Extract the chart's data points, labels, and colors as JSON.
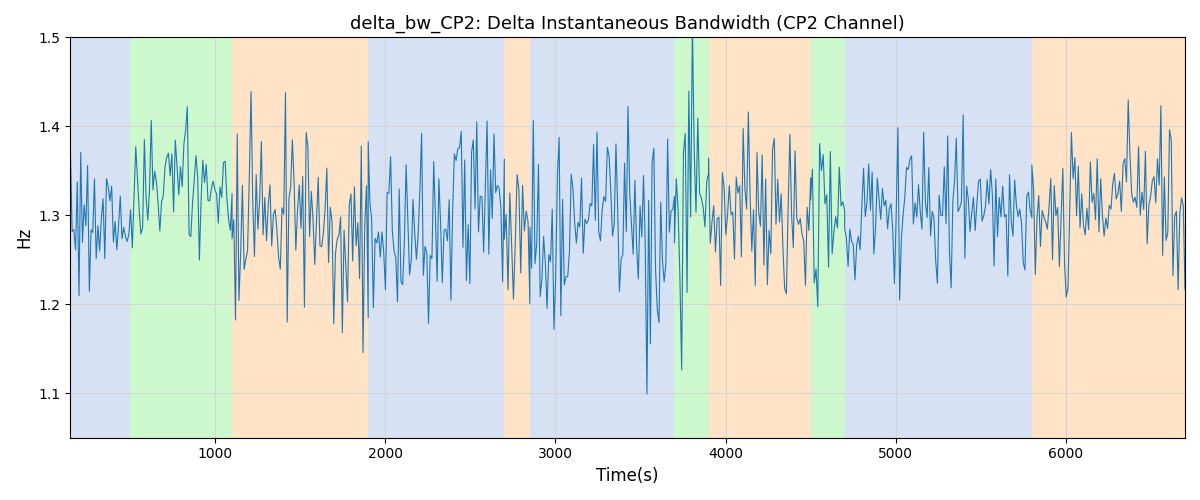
{
  "title": "delta_bw_CP2: Delta Instantaneous Bandwidth (CP2 Channel)",
  "xlabel": "Time(s)",
  "ylabel": "Hz",
  "ylim": [
    1.05,
    1.5
  ],
  "xlim": [
    150,
    6700
  ],
  "yticks": [
    1.1,
    1.2,
    1.3,
    1.4,
    1.5
  ],
  "line_color": "#1f77b4",
  "line_width": 0.8,
  "bg_regions": [
    {
      "xstart": 150,
      "xend": 500,
      "color": "#aec6e8",
      "alpha": 0.5
    },
    {
      "xstart": 500,
      "xend": 1100,
      "color": "#90ee90",
      "alpha": 0.45
    },
    {
      "xstart": 1100,
      "xend": 1900,
      "color": "#ffcc99",
      "alpha": 0.55
    },
    {
      "xstart": 1900,
      "xend": 2700,
      "color": "#aec6e8",
      "alpha": 0.5
    },
    {
      "xstart": 2700,
      "xend": 2850,
      "color": "#ffcc99",
      "alpha": 0.55
    },
    {
      "xstart": 2850,
      "xend": 3700,
      "color": "#aec6e8",
      "alpha": 0.5
    },
    {
      "xstart": 3700,
      "xend": 3900,
      "color": "#90ee90",
      "alpha": 0.45
    },
    {
      "xstart": 3900,
      "xend": 4500,
      "color": "#ffcc99",
      "alpha": 0.55
    },
    {
      "xstart": 4500,
      "xend": 4700,
      "color": "#90ee90",
      "alpha": 0.45
    },
    {
      "xstart": 4700,
      "xend": 5800,
      "color": "#aec6e8",
      "alpha": 0.5
    },
    {
      "xstart": 5800,
      "xend": 6050,
      "color": "#ffcc99",
      "alpha": 0.55
    },
    {
      "xstart": 6050,
      "xend": 6700,
      "color": "#ffcc99",
      "alpha": 0.55
    }
  ],
  "figsize": [
    12.0,
    5.0
  ],
  "dpi": 100,
  "segments": [
    {
      "t0": 150,
      "t1": 1100,
      "mean": 1.315,
      "std": 0.04,
      "seed": 1
    },
    {
      "t0": 1100,
      "t1": 1900,
      "mean": 1.3,
      "std": 0.055,
      "seed": 2
    },
    {
      "t0": 1900,
      "t1": 2700,
      "mean": 1.3,
      "std": 0.05,
      "seed": 3
    },
    {
      "t0": 2700,
      "t1": 2850,
      "mean": 1.29,
      "std": 0.06,
      "seed": 4
    },
    {
      "t0": 2850,
      "t1": 3700,
      "mean": 1.28,
      "std": 0.06,
      "seed": 5
    },
    {
      "t0": 3700,
      "t1": 3900,
      "mean": 1.31,
      "std": 0.07,
      "seed": 6
    },
    {
      "t0": 3900,
      "t1": 4500,
      "mean": 1.305,
      "std": 0.045,
      "seed": 7
    },
    {
      "t0": 4500,
      "t1": 4700,
      "mean": 1.3,
      "std": 0.04,
      "seed": 8
    },
    {
      "t0": 4700,
      "t1": 5800,
      "mean": 1.305,
      "std": 0.038,
      "seed": 9
    },
    {
      "t0": 5800,
      "t1": 6700,
      "mean": 1.31,
      "std": 0.042,
      "seed": 10
    }
  ]
}
